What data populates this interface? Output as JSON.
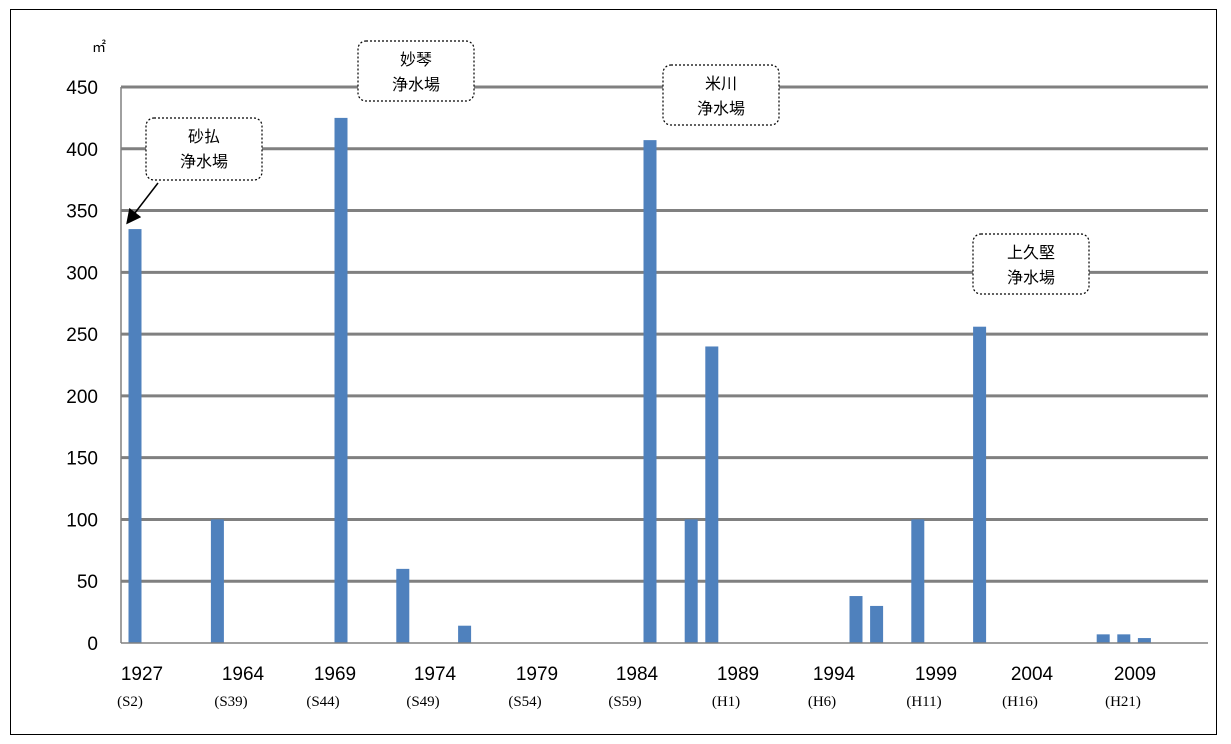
{
  "chart_data": {
    "type": "bar",
    "y_unit": "㎡",
    "ylim": [
      0,
      450
    ],
    "y_ticks": [
      0,
      50,
      100,
      150,
      200,
      250,
      300,
      350,
      400,
      450
    ],
    "grid": true,
    "x_labels": [
      {
        "year": "1927",
        "era": "(S2)"
      },
      {
        "year": "1964",
        "era": "(S39)"
      },
      {
        "year": "1969",
        "era": "(S44)"
      },
      {
        "year": "1974",
        "era": "(S49)"
      },
      {
        "year": "1979",
        "era": "(S54)"
      },
      {
        "year": "1984",
        "era": "(S59)"
      },
      {
        "year": "1989",
        "era": "(H1)"
      },
      {
        "year": "1994",
        "era": "(H6)"
      },
      {
        "year": "1999",
        "era": "(H11)"
      },
      {
        "year": "2004",
        "era": "(H16)"
      },
      {
        "year": "2009",
        "era": "(H21)"
      }
    ],
    "bars": [
      {
        "year": 1927,
        "value": 335
      },
      {
        "year": 1967,
        "value": 100
      },
      {
        "year": 1973,
        "value": 425
      },
      {
        "year": 1976,
        "value": 60
      },
      {
        "year": 1979,
        "value": 14
      },
      {
        "year": 1988,
        "value": 407
      },
      {
        "year": 1990,
        "value": 100
      },
      {
        "year": 1991,
        "value": 240
      },
      {
        "year": 1998,
        "value": 38
      },
      {
        "year": 1999,
        "value": 30
      },
      {
        "year": 2001,
        "value": 100
      },
      {
        "year": 2004,
        "value": 256
      },
      {
        "year": 2010,
        "value": 7
      },
      {
        "year": 2011,
        "value": 7
      },
      {
        "year": 2012,
        "value": 4
      }
    ],
    "bar_color": "#4f81bd",
    "grid_color": "#808080",
    "annotations": [
      {
        "lines": [
          "砂払",
          "浄水場"
        ],
        "target_year": 1927,
        "arrow": true
      },
      {
        "lines": [
          "妙琴",
          "浄水場"
        ],
        "target_year": 1973,
        "arrow": false
      },
      {
        "lines": [
          "米川",
          "浄水場"
        ],
        "target_year": 1988,
        "arrow": false
      },
      {
        "lines": [
          "上久堅",
          "浄水場"
        ],
        "target_year": 2004,
        "arrow": false
      }
    ]
  }
}
